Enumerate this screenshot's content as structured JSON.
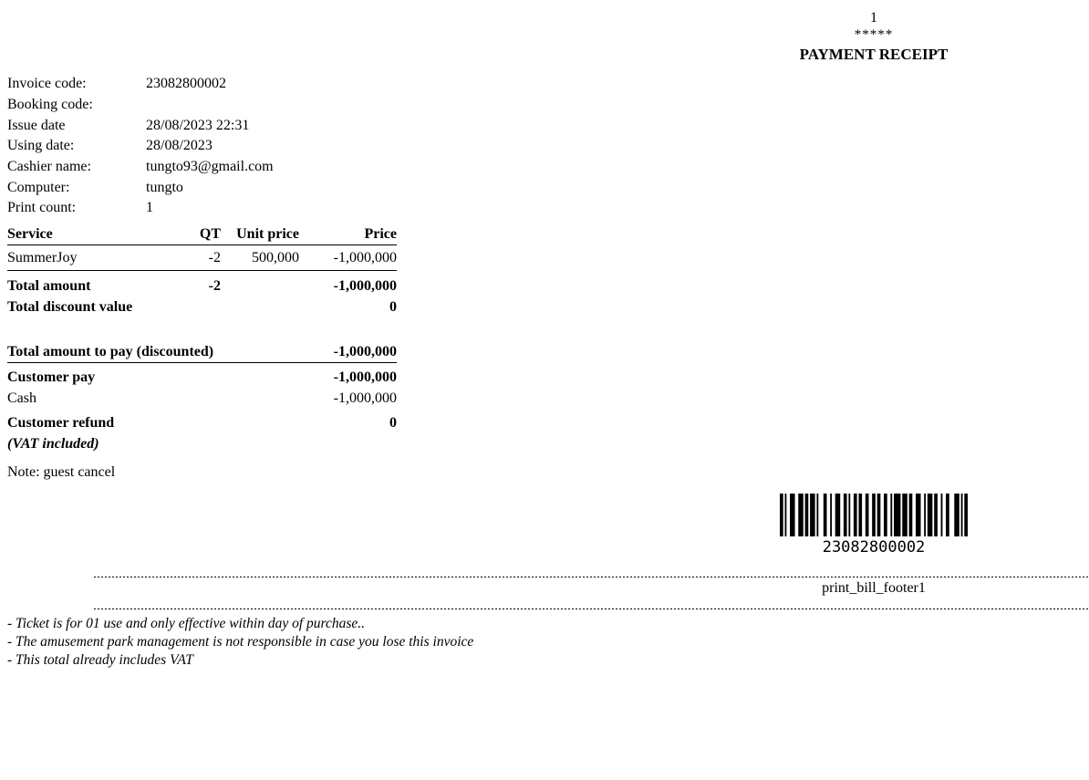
{
  "header": {
    "page_number": "1",
    "stars": "*****",
    "title": "PAYMENT RECEIPT"
  },
  "meta": {
    "rows": [
      {
        "label": "Invoice code:",
        "value": "23082800002"
      },
      {
        "label": "Booking code:",
        "value": ""
      },
      {
        "label": "Issue date",
        "value": "28/08/2023 22:31"
      },
      {
        "label": "Using date:",
        "value": "28/08/2023"
      },
      {
        "label": "Cashier name:",
        "value": "tungto93@gmail.com"
      },
      {
        "label": "Computer:",
        "value": "tungto"
      },
      {
        "label": "Print count:",
        "value": "1"
      }
    ]
  },
  "table": {
    "headers": {
      "service": "Service",
      "qt": "QT",
      "unit_price": "Unit price",
      "price": "Price"
    },
    "items": [
      {
        "service": "SummerJoy",
        "qt": "-2",
        "unit_price": "500,000",
        "price": "-1,000,000"
      }
    ],
    "total_amount": {
      "label": "Total amount",
      "qt": "-2",
      "price": "-1,000,000"
    },
    "total_discount": {
      "label": "Total discount value",
      "price": "0"
    },
    "total_to_pay": {
      "label": "Total amount to pay (discounted)",
      "price": "-1,000,000"
    },
    "customer_pay": {
      "label": "Customer pay",
      "price": "-1,000,000"
    },
    "cash": {
      "label": "Cash",
      "price": "-1,000,000"
    },
    "customer_refund": {
      "label": "Customer refund",
      "price": "0"
    },
    "vat_note": "(VAT included)",
    "note": "Note: guest cancel"
  },
  "barcode": {
    "value": "23082800002",
    "code128_pattern": "2112323121311322123221122122222122221141312232113122122331112",
    "bar_color": "#000000"
  },
  "footer": {
    "separator_label": "print_bill_footer1",
    "notes": [
      "- Ticket is for 01 use and only effective within day of purchase..",
      "- The amusement park management is not responsible in case you lose this invoice",
      "- This total already includes VAT"
    ]
  }
}
